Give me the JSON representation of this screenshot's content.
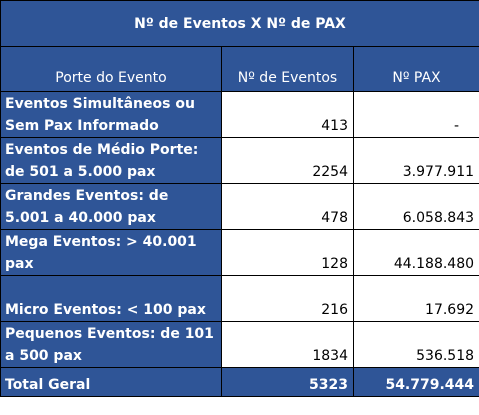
{
  "table": {
    "title": "Nº de Eventos X Nº de PAX",
    "headers": [
      "Porte do Evento",
      "Nº de Eventos",
      "Nº PAX"
    ],
    "rows": [
      {
        "label": "Eventos Simultâneos ou Sem Pax Informado",
        "events": "413",
        "pax": "-"
      },
      {
        "label": "Eventos de Médio Porte: de 501 a 5.000 pax",
        "events": "2254",
        "pax": "3.977.911"
      },
      {
        "label": "Grandes Eventos: de 5.001 a 40.000 pax",
        "events": "478",
        "pax": "6.058.843"
      },
      {
        "label": "Mega Eventos: > 40.001 pax",
        "events": "128",
        "pax": "44.188.480"
      },
      {
        "label": "Micro Eventos: < 100 pax",
        "events": "216",
        "pax": "17.692"
      },
      {
        "label": "Pequenos Eventos: de 101 a 500 pax",
        "events": "1834",
        "pax": "536.518"
      }
    ],
    "total": {
      "label": "Total Geral",
      "events": "5323",
      "pax": "54.779.444"
    }
  }
}
